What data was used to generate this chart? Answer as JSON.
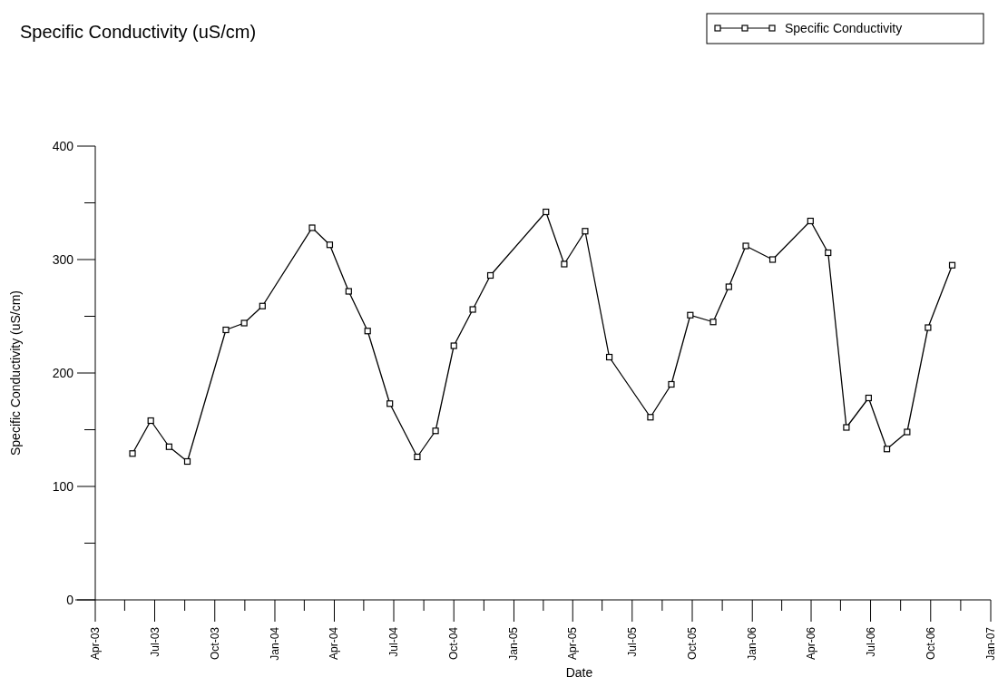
{
  "chart_data": {
    "type": "line",
    "title": "Specific Conductivity (uS/cm)",
    "xlabel": "Date",
    "ylabel": "Specific Conductivity (uS/cm)",
    "x": [
      "2003-05-28",
      "2003-06-25",
      "2003-07-23",
      "2003-08-20",
      "2003-10-18",
      "2003-11-15",
      "2003-12-13",
      "2004-02-27",
      "2004-03-25",
      "2004-04-23",
      "2004-05-22",
      "2004-06-25",
      "2004-08-06",
      "2004-09-03",
      "2004-10-01",
      "2004-10-30",
      "2004-11-26",
      "2005-02-19",
      "2005-03-19",
      "2005-04-20",
      "2005-05-27",
      "2005-07-29",
      "2005-08-30",
      "2005-09-28",
      "2005-11-02",
      "2005-11-26",
      "2005-12-22",
      "2006-02-01",
      "2006-03-31",
      "2006-04-27",
      "2006-05-25",
      "2006-06-28",
      "2006-07-26",
      "2006-08-26",
      "2006-09-27",
      "2006-11-03"
    ],
    "series": [
      {
        "name": "Specific Conductivity",
        "color": "#000000",
        "values": [
          129,
          158,
          135,
          122,
          238,
          244,
          259,
          328,
          313,
          272,
          237,
          173,
          126,
          149,
          224,
          256,
          286,
          342,
          296,
          325,
          214,
          161,
          190,
          251,
          245,
          276,
          312,
          300,
          334,
          306,
          152,
          178,
          133,
          148,
          240,
          295
        ]
      }
    ],
    "xlim": [
      "2003-04-01",
      "2007-01-01"
    ],
    "xticks": [
      {
        "value": "2003-04-01",
        "label": "Apr-03"
      },
      {
        "value": "2003-05-16",
        "label": null
      },
      {
        "value": "2003-07-01",
        "label": "Jul-03"
      },
      {
        "value": "2003-08-16",
        "label": null
      },
      {
        "value": "2003-10-01",
        "label": "Oct-03"
      },
      {
        "value": "2003-11-16",
        "label": null
      },
      {
        "value": "2004-01-01",
        "label": "Jan-04"
      },
      {
        "value": "2004-02-15",
        "label": null
      },
      {
        "value": "2004-04-01",
        "label": "Apr-04"
      },
      {
        "value": "2004-05-16",
        "label": null
      },
      {
        "value": "2004-07-01",
        "label": "Jul-04"
      },
      {
        "value": "2004-08-16",
        "label": null
      },
      {
        "value": "2004-10-01",
        "label": "Oct-04"
      },
      {
        "value": "2004-11-16",
        "label": null
      },
      {
        "value": "2005-01-01",
        "label": "Jan-05"
      },
      {
        "value": "2005-02-15",
        "label": null
      },
      {
        "value": "2005-04-01",
        "label": "Apr-05"
      },
      {
        "value": "2005-05-16",
        "label": null
      },
      {
        "value": "2005-07-01",
        "label": "Jul-05"
      },
      {
        "value": "2005-08-16",
        "label": null
      },
      {
        "value": "2005-10-01",
        "label": "Oct-05"
      },
      {
        "value": "2005-11-16",
        "label": null
      },
      {
        "value": "2006-01-01",
        "label": "Jan-06"
      },
      {
        "value": "2006-02-15",
        "label": null
      },
      {
        "value": "2006-04-01",
        "label": "Apr-06"
      },
      {
        "value": "2006-05-16",
        "label": null
      },
      {
        "value": "2006-07-01",
        "label": "Jul-06"
      },
      {
        "value": "2006-08-16",
        "label": null
      },
      {
        "value": "2006-10-01",
        "label": "Oct-06"
      },
      {
        "value": "2006-11-16",
        "label": null
      },
      {
        "value": "2007-01-01",
        "label": "Jan-07"
      }
    ],
    "ylim": [
      0,
      400
    ],
    "yticks": [
      0,
      {
        "value": 50,
        "label": null
      },
      100,
      {
        "value": 150,
        "label": null
      },
      200,
      {
        "value": 250,
        "label": null
      },
      300,
      {
        "value": 350,
        "label": null
      },
      400
    ],
    "marker": "square",
    "line_style": "solid",
    "legend": "top right",
    "grid": false
  }
}
